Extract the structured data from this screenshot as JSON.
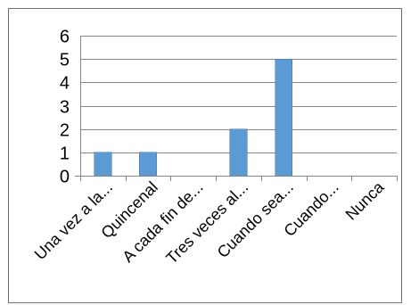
{
  "chart_data": {
    "type": "bar",
    "categories": [
      "Una vez a la...",
      "Quincenal",
      "A cada fin de...",
      "Tres veces al...",
      "Cuando sea...",
      "Cuando...",
      "Nunca"
    ],
    "values": [
      1,
      1,
      0,
      2,
      5,
      0,
      0
    ],
    "ylim": [
      0,
      6
    ],
    "yticks": [
      0,
      1,
      2,
      3,
      4,
      5,
      6
    ],
    "grid": true,
    "legend": "none",
    "bar_color": "#5b9bd5"
  }
}
